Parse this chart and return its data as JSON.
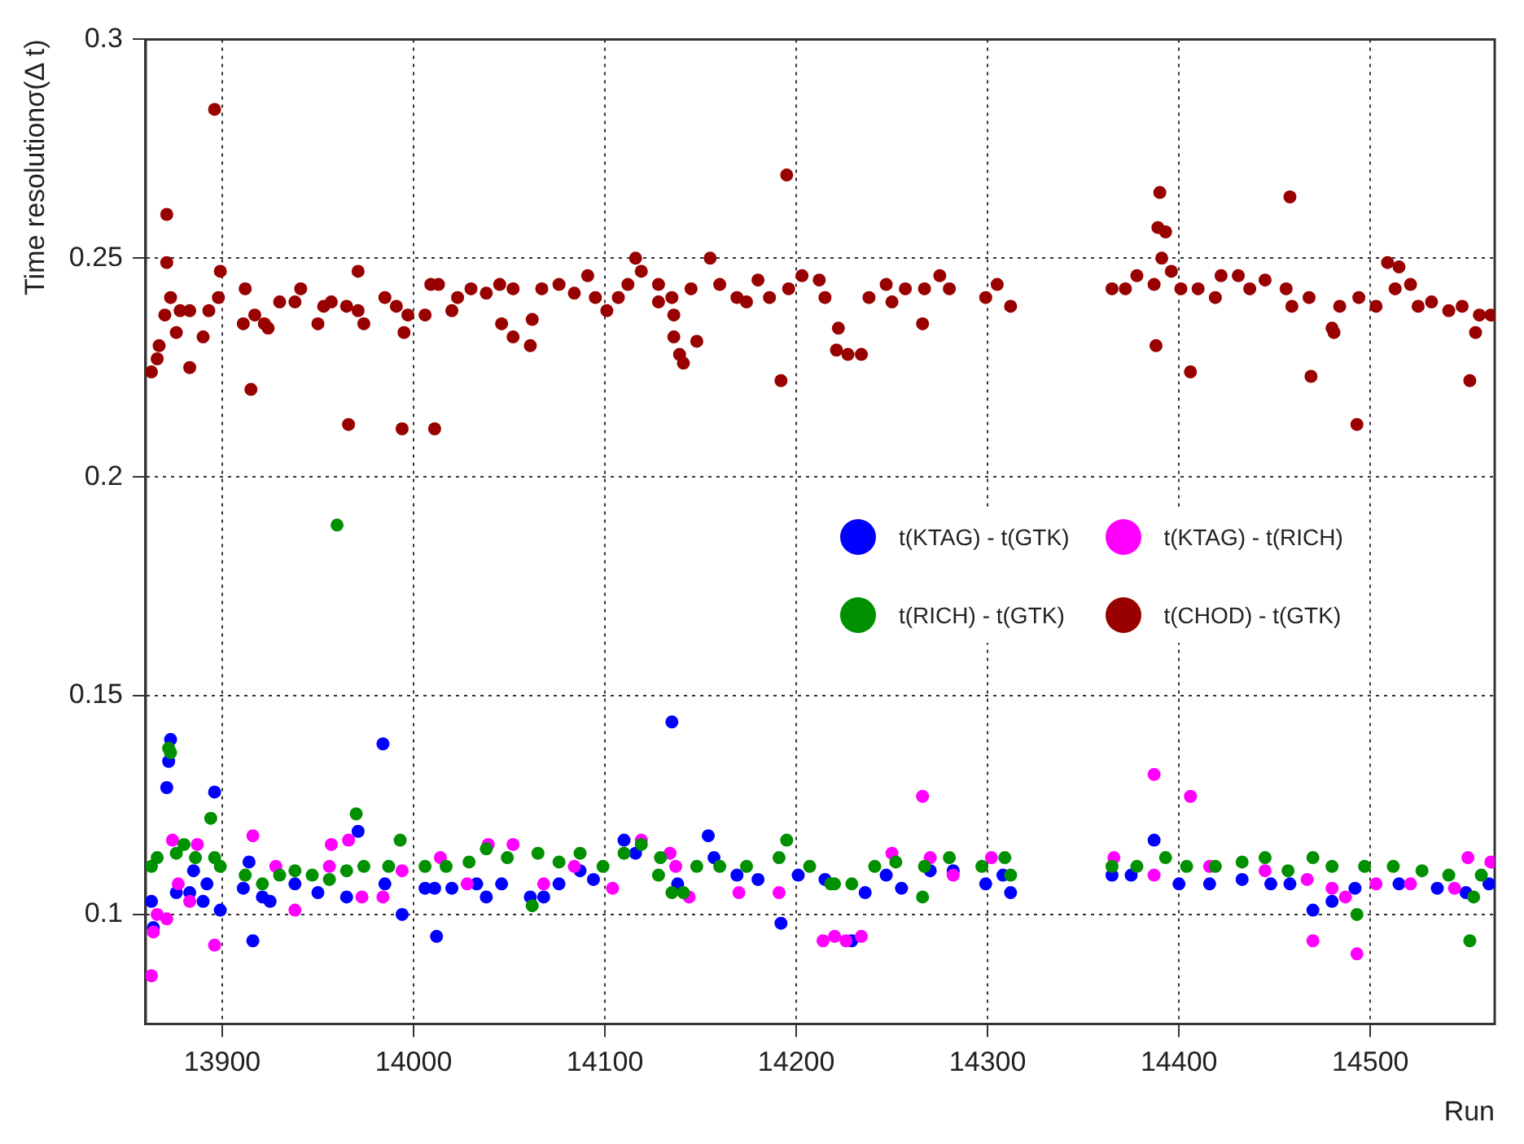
{
  "chart_data": {
    "type": "scatter",
    "xlabel": "Run",
    "ylabel": "Time resolutionσ(Δ t)",
    "xlim": [
      13860,
      14565
    ],
    "ylim": [
      0.075,
      0.3
    ],
    "xticks": [
      13900,
      14000,
      14100,
      14200,
      14300,
      14400,
      14500
    ],
    "yticks": [
      0.1,
      0.15,
      0.2,
      0.25,
      0.3
    ],
    "grid": true,
    "legend": "right",
    "marker": "circle",
    "series": [
      {
        "name": "t(KTAG) - t(GTK)",
        "color": "#0000ff",
        "x": [
          13863,
          13864,
          13873,
          13872,
          13871,
          13876,
          13883,
          13885,
          13890,
          13892,
          13896,
          13899,
          13911,
          13914,
          13916,
          13921,
          13925,
          13938,
          13950,
          13965,
          13971,
          13984,
          13985,
          13994,
          14006,
          14011,
          14012,
          14020,
          14033,
          14038,
          14046,
          14061,
          14068,
          14076,
          14087,
          14094,
          14110,
          14116,
          14135,
          14138,
          14154,
          14157,
          14169,
          14180,
          14192,
          14201,
          14215,
          14236,
          14247,
          14255,
          14270,
          14282,
          14299,
          14312,
          14308,
          14229,
          14365,
          14375,
          14387,
          14400,
          14416,
          14433,
          14448,
          14458,
          14470,
          14480,
          14492,
          14515,
          14535,
          14550,
          14562
        ],
        "values": [
          0.103,
          0.097,
          0.14,
          0.135,
          0.129,
          0.105,
          0.105,
          0.11,
          0.103,
          0.107,
          0.128,
          0.101,
          0.106,
          0.112,
          0.094,
          0.104,
          0.103,
          0.107,
          0.105,
          0.104,
          0.119,
          0.139,
          0.107,
          0.1,
          0.106,
          0.106,
          0.095,
          0.106,
          0.107,
          0.104,
          0.107,
          0.104,
          0.104,
          0.107,
          0.11,
          0.108,
          0.117,
          0.114,
          0.144,
          0.107,
          0.118,
          0.113,
          0.109,
          0.108,
          0.098,
          0.109,
          0.108,
          0.105,
          0.109,
          0.106,
          0.11,
          0.11,
          0.107,
          0.105,
          0.109,
          0.094,
          0.109,
          0.109,
          0.117,
          0.107,
          0.107,
          0.108,
          0.107,
          0.107,
          0.101,
          0.103,
          0.106,
          0.107,
          0.106,
          0.105,
          0.107
        ]
      },
      {
        "name": "t(KTAG) - t(RICH)",
        "color": "#ff00ff",
        "x": [
          13863,
          13864,
          13866,
          13871,
          13874,
          13877,
          13883,
          13887,
          13896,
          13916,
          13928,
          13938,
          13956,
          13957,
          13966,
          13973,
          13984,
          13994,
          14014,
          14028,
          14039,
          14052,
          14068,
          14084,
          14104,
          14119,
          14134,
          14137,
          14144,
          14170,
          14191,
          14214,
          14220,
          14226,
          14234,
          14250,
          14266,
          14270,
          14282,
          14302,
          14366,
          14387,
          14387,
          14406,
          14416,
          14445,
          14470,
          14467,
          14480,
          14487,
          14493,
          14503,
          14521,
          14544,
          14551,
          14563
        ],
        "values": [
          0.086,
          0.096,
          0.1,
          0.099,
          0.117,
          0.107,
          0.103,
          0.116,
          0.093,
          0.118,
          0.111,
          0.101,
          0.111,
          0.116,
          0.117,
          0.104,
          0.104,
          0.11,
          0.113,
          0.107,
          0.116,
          0.116,
          0.107,
          0.111,
          0.106,
          0.117,
          0.114,
          0.111,
          0.104,
          0.105,
          0.105,
          0.094,
          0.095,
          0.094,
          0.095,
          0.114,
          0.127,
          0.113,
          0.109,
          0.113,
          0.113,
          0.132,
          0.109,
          0.127,
          0.111,
          0.11,
          0.094,
          0.108,
          0.106,
          0.104,
          0.091,
          0.107,
          0.107,
          0.106,
          0.113,
          0.112
        ]
      },
      {
        "name": "t(RICH) - t(GTK)",
        "color": "#009000",
        "x": [
          13863,
          13866,
          13872,
          13873,
          13876,
          13880,
          13886,
          13894,
          13896,
          13899,
          13912,
          13921,
          13930,
          13938,
          13947,
          13956,
          13960,
          13965,
          13970,
          13974,
          13987,
          13993,
          14006,
          14017,
          14029,
          14038,
          14049,
          14062,
          14065,
          14076,
          14087,
          14099,
          14110,
          14119,
          14129,
          14128,
          14135,
          14141,
          14148,
          14160,
          14174,
          14191,
          14195,
          14207,
          14218,
          14220,
          14229,
          14241,
          14252,
          14266,
          14267,
          14280,
          14297,
          14309,
          14312,
          14365,
          14378,
          14393,
          14404,
          14419,
          14433,
          14445,
          14457,
          14470,
          14480,
          14493,
          14497,
          14512,
          14527,
          14541,
          14552,
          14554,
          14558
        ],
        "values": [
          0.111,
          0.113,
          0.138,
          0.137,
          0.114,
          0.116,
          0.113,
          0.122,
          0.113,
          0.111,
          0.109,
          0.107,
          0.109,
          0.11,
          0.109,
          0.108,
          0.189,
          0.11,
          0.123,
          0.111,
          0.111,
          0.117,
          0.111,
          0.111,
          0.112,
          0.115,
          0.113,
          0.102,
          0.114,
          0.112,
          0.114,
          0.111,
          0.114,
          0.116,
          0.113,
          0.109,
          0.105,
          0.105,
          0.111,
          0.111,
          0.111,
          0.113,
          0.117,
          0.111,
          0.107,
          0.107,
          0.107,
          0.111,
          0.112,
          0.104,
          0.111,
          0.113,
          0.111,
          0.113,
          0.109,
          0.111,
          0.111,
          0.113,
          0.111,
          0.111,
          0.112,
          0.113,
          0.11,
          0.113,
          0.111,
          0.1,
          0.111,
          0.111,
          0.11,
          0.109,
          0.094,
          0.104,
          0.109
        ]
      },
      {
        "name": "t(CHOD) - t(GTK)",
        "color": "#990000",
        "x": [
          13863,
          13866,
          13867,
          13871,
          13871,
          13873,
          13870,
          13876,
          13878,
          13883,
          13883,
          13890,
          13893,
          13896,
          13898,
          13899,
          13911,
          13912,
          13915,
          13917,
          13922,
          13924,
          13930,
          13938,
          13941,
          13950,
          13953,
          13957,
          13965,
          13966,
          13971,
          13971,
          13974,
          13985,
          13991,
          13994,
          13995,
          13997,
          14006,
          14009,
          14011,
          14013,
          14020,
          14023,
          14030,
          14038,
          14045,
          14046,
          14052,
          14052,
          14061,
          14062,
          14067,
          14076,
          14084,
          14091,
          14095,
          14101,
          14107,
          14112,
          14116,
          14119,
          14128,
          14128,
          14135,
          14136,
          14136,
          14139,
          14141,
          14145,
          14148,
          14155,
          14160,
          14169,
          14174,
          14180,
          14186,
          14192,
          14195,
          14196,
          14203,
          14212,
          14215,
          14222,
          14221,
          14227,
          14234,
          14238,
          14247,
          14250,
          14257,
          14266,
          14267,
          14275,
          14280,
          14299,
          14305,
          14312,
          14365,
          14372,
          14378,
          14387,
          14388,
          14390,
          14389,
          14393,
          14391,
          14396,
          14401,
          14406,
          14410,
          14419,
          14422,
          14431,
          14437,
          14445,
          14456,
          14458,
          14459,
          14468,
          14469,
          14480,
          14481,
          14484,
          14493,
          14494,
          14503,
          14509,
          14515,
          14513,
          14521,
          14525,
          14532,
          14541,
          14548,
          14552,
          14555,
          14557,
          14563
        ],
        "values": [
          0.224,
          0.227,
          0.23,
          0.26,
          0.249,
          0.241,
          0.237,
          0.233,
          0.238,
          0.238,
          0.225,
          0.232,
          0.238,
          0.284,
          0.241,
          0.247,
          0.235,
          0.243,
          0.22,
          0.237,
          0.235,
          0.234,
          0.24,
          0.24,
          0.243,
          0.235,
          0.239,
          0.24,
          0.239,
          0.212,
          0.247,
          0.238,
          0.235,
          0.241,
          0.239,
          0.211,
          0.233,
          0.237,
          0.237,
          0.244,
          0.211,
          0.244,
          0.238,
          0.241,
          0.243,
          0.242,
          0.244,
          0.235,
          0.243,
          0.232,
          0.23,
          0.236,
          0.243,
          0.244,
          0.242,
          0.246,
          0.241,
          0.238,
          0.241,
          0.244,
          0.25,
          0.247,
          0.244,
          0.24,
          0.241,
          0.237,
          0.232,
          0.228,
          0.226,
          0.243,
          0.231,
          0.25,
          0.244,
          0.241,
          0.24,
          0.245,
          0.241,
          0.222,
          0.269,
          0.243,
          0.246,
          0.245,
          0.241,
          0.234,
          0.229,
          0.228,
          0.228,
          0.241,
          0.244,
          0.24,
          0.243,
          0.235,
          0.243,
          0.246,
          0.243,
          0.241,
          0.244,
          0.239,
          0.243,
          0.243,
          0.246,
          0.244,
          0.23,
          0.265,
          0.257,
          0.256,
          0.25,
          0.247,
          0.243,
          0.224,
          0.243,
          0.241,
          0.246,
          0.246,
          0.243,
          0.245,
          0.243,
          0.264,
          0.239,
          0.241,
          0.223,
          0.234,
          0.233,
          0.239,
          0.212,
          0.241,
          0.239,
          0.249,
          0.248,
          0.243,
          0.244,
          0.239,
          0.24,
          0.238,
          0.239,
          0.222,
          0.233,
          0.237,
          0.237
        ]
      }
    ]
  }
}
